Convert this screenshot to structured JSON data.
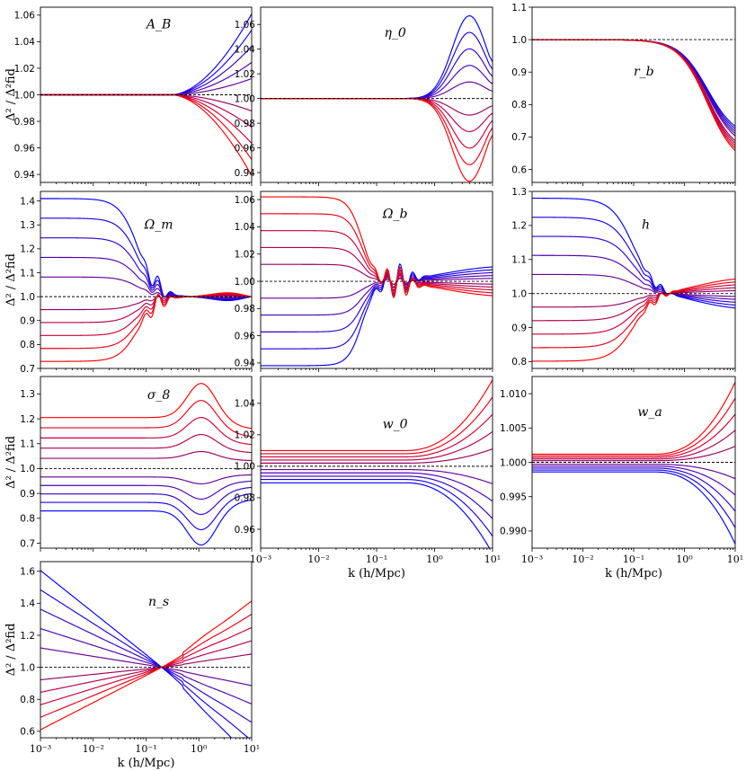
{
  "figure": {
    "ylabel": "Δ² / Δ²fid",
    "xlabel": "k (h/Mpc)"
  },
  "chart_data": [
    {
      "type": "line",
      "title": "A_B",
      "shape": "sup",
      "amp": 0.061,
      "kc": 3.0,
      "xscale": "log",
      "xlim": [
        0.001,
        10
      ],
      "ylim": [
        0.934,
        1.066
      ],
      "yticks": [
        0.94,
        0.96,
        0.98,
        1.0,
        1.02,
        1.04,
        1.06
      ],
      "ytick_labels": [
        "0.94",
        "0.96",
        "0.98",
        "1.00",
        "1.02",
        "1.04",
        "1.06"
      ],
      "xtick_labels": [],
      "xlabel": "",
      "ylabel": "Δ² / Δ²fid",
      "n_series": 11,
      "fiducial": 1.0
    },
    {
      "type": "line",
      "title": "η_0",
      "shape": "bump",
      "amp": 0.067,
      "center": 4.0,
      "xscale": "log",
      "xlim": [
        0.001,
        10
      ],
      "ylim": [
        0.932,
        1.074
      ],
      "yticks": [
        0.94,
        0.96,
        0.98,
        1.0,
        1.02,
        1.04,
        1.06
      ],
      "ytick_labels": [
        "0.94",
        "0.96",
        "0.98",
        "1.00",
        "1.02",
        "1.04",
        "1.06"
      ],
      "xtick_labels": [],
      "xlabel": "",
      "ylabel": "",
      "n_series": 11,
      "fiducial": 1.0
    },
    {
      "type": "line",
      "title": "r_b",
      "shape": "rb",
      "amp": 0.39,
      "kc": 1.5,
      "xscale": "log",
      "xlim": [
        0.001,
        10
      ],
      "ylim": [
        0.56,
        1.1
      ],
      "yticks": [
        0.6,
        0.7,
        0.8,
        0.9,
        1.0,
        1.1
      ],
      "ytick_labels": [
        "0.6",
        "0.7",
        "0.8",
        "0.9",
        "1.0",
        "1.1"
      ],
      "xtick_labels": [],
      "xlabel": "",
      "ylabel": "",
      "n_series": 11,
      "fiducial": 1.0
    },
    {
      "type": "line",
      "title": "Ω_m",
      "shape": "omm",
      "amp": 0.41,
      "xscale": "log",
      "xlim": [
        0.001,
        10
      ],
      "ylim": [
        0.7,
        1.44
      ],
      "yticks": [
        0.7,
        0.8,
        0.9,
        1.0,
        1.1,
        1.2,
        1.3,
        1.4
      ],
      "ytick_labels": [
        "0.7",
        "0.8",
        "0.9",
        "1.0",
        "1.1",
        "1.2",
        "1.3",
        "1.4"
      ],
      "xtick_labels": [],
      "xlabel": "",
      "ylabel": "Δ² / Δ²fid",
      "n_series": 11,
      "fiducial": 1.0
    },
    {
      "type": "line",
      "title": "Ω_b",
      "shape": "omb",
      "amp": 0.062,
      "xscale": "log",
      "xlim": [
        0.001,
        10
      ],
      "ylim": [
        0.936,
        1.066
      ],
      "yticks": [
        0.94,
        0.96,
        0.98,
        1.0,
        1.02,
        1.04,
        1.06
      ],
      "ytick_labels": [
        "0.94",
        "0.96",
        "0.98",
        "1.00",
        "1.02",
        "1.04",
        "1.06"
      ],
      "xtick_labels": [],
      "xlabel": "",
      "ylabel": "",
      "n_series": 11,
      "fiducial": 1.0
    },
    {
      "type": "line",
      "title": "h",
      "shape": "hh",
      "amp": 0.28,
      "xscale": "log",
      "xlim": [
        0.001,
        10
      ],
      "ylim": [
        0.78,
        1.3
      ],
      "yticks": [
        0.8,
        0.9,
        1.0,
        1.1,
        1.2,
        1.3
      ],
      "ytick_labels": [
        "0.8",
        "0.9",
        "1.0",
        "1.1",
        "1.2",
        "1.3"
      ],
      "xtick_labels": [],
      "xlabel": "",
      "ylabel": "",
      "n_series": 11,
      "fiducial": 1.0
    },
    {
      "type": "line",
      "title": "σ_8",
      "shape": "sig8",
      "amp": 0.205,
      "xscale": "log",
      "xlim": [
        0.001,
        10
      ],
      "ylim": [
        0.68,
        1.37
      ],
      "yticks": [
        0.7,
        0.8,
        0.9,
        1.0,
        1.1,
        1.2,
        1.3
      ],
      "ytick_labels": [
        "0.7",
        "0.8",
        "0.9",
        "1.0",
        "1.1",
        "1.2",
        "1.3"
      ],
      "xtick_labels": [],
      "xlabel": "",
      "ylabel": "Δ² / Δ²fid",
      "n_series": 11,
      "fiducial": 1.0
    },
    {
      "type": "line",
      "title": "w_0",
      "shape": "w0",
      "amp": 0.0105,
      "xscale": "log",
      "xlim": [
        0.001,
        10
      ],
      "ylim": [
        0.948,
        1.057
      ],
      "yticks": [
        0.96,
        0.98,
        1.0,
        1.02,
        1.04
      ],
      "ytick_labels": [
        "0.96",
        "0.98",
        "1.00",
        "1.02",
        "1.04"
      ],
      "xtick_labels": [
        "10⁻³",
        "10⁻²",
        "10⁻¹",
        "10⁰",
        "10¹"
      ],
      "xlabel": "k (h/Mpc)",
      "ylabel": "",
      "n_series": 11,
      "fiducial": 1.0
    },
    {
      "type": "line",
      "title": "w_a",
      "shape": "wa",
      "amp": 0.0014,
      "xscale": "log",
      "xlim": [
        0.001,
        10
      ],
      "ylim": [
        0.9875,
        1.0125
      ],
      "yticks": [
        0.99,
        0.995,
        1.0,
        1.005,
        1.01
      ],
      "ytick_labels": [
        "0.990",
        "0.995",
        "1.000",
        "1.005",
        "1.010"
      ],
      "xtick_labels": [
        "10⁻³",
        "10⁻²",
        "10⁻¹",
        "10⁰",
        "10¹"
      ],
      "xlabel": "k (h/Mpc)",
      "ylabel": "",
      "n_series": 11,
      "fiducial": 1.0
    },
    {
      "type": "line",
      "title": "n_s",
      "shape": "ns",
      "amp": 0.62,
      "xscale": "log",
      "xlim": [
        0.001,
        10
      ],
      "ylim": [
        0.56,
        1.66
      ],
      "yticks": [
        0.6,
        0.8,
        1.0,
        1.2,
        1.4,
        1.6
      ],
      "ytick_labels": [
        "0.6",
        "0.8",
        "1.0",
        "1.2",
        "1.4",
        "1.6"
      ],
      "xtick_labels": [
        "10⁻³",
        "10⁻²",
        "10⁻¹",
        "10⁰",
        "10¹"
      ],
      "xlabel": "k (h/Mpc)",
      "ylabel": "Δ² / Δ²fid",
      "n_series": 11,
      "fiducial": 1.0
    }
  ]
}
